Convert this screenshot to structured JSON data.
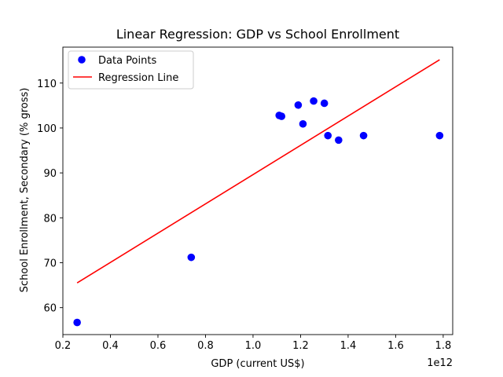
{
  "chart_data": {
    "type": "scatter",
    "title": "Linear Regression: GDP vs School Enrollment",
    "xlabel": "GDP (current US$)",
    "ylabel": "School Enrollment, Secondary (% gross)",
    "x_offset_label": "1e12",
    "xlim": [
      0.2,
      1.84
    ],
    "ylim": [
      54,
      118
    ],
    "xticks": [
      0.2,
      0.4,
      0.6,
      0.8,
      1.0,
      1.2,
      1.4,
      1.6,
      1.8
    ],
    "xtick_labels": [
      "0.2",
      "0.4",
      "0.6",
      "0.8",
      "1.0",
      "1.2",
      "1.4",
      "1.6",
      "1.8"
    ],
    "yticks": [
      60,
      70,
      80,
      90,
      100,
      110
    ],
    "ytick_labels": [
      "60",
      "70",
      "80",
      "90",
      "100",
      "110"
    ],
    "grid": false,
    "legend_position": "top-left",
    "series": [
      {
        "name": "Data Points",
        "kind": "scatter",
        "color": "#0000ff",
        "x": [
          0.26,
          0.74,
          1.11,
          1.12,
          1.19,
          1.21,
          1.255,
          1.3,
          1.315,
          1.36,
          1.465,
          1.785
        ],
        "y": [
          56.7,
          71.2,
          102.8,
          102.6,
          105.1,
          100.9,
          106.0,
          105.5,
          98.3,
          97.3,
          98.3,
          98.3
        ]
      },
      {
        "name": "Regression Line",
        "kind": "line",
        "color": "#ff0000",
        "x": [
          0.26,
          1.785
        ],
        "y": [
          65.5,
          115.2
        ]
      }
    ]
  }
}
